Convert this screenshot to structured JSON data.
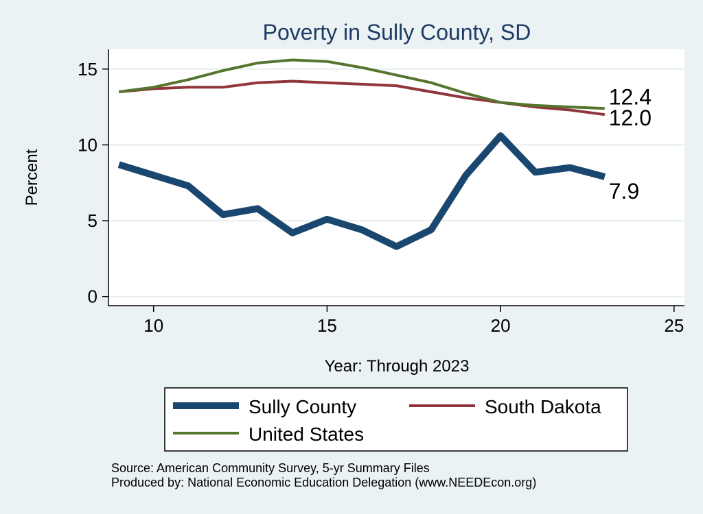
{
  "chart_data": {
    "type": "line",
    "title": "Poverty in Sully County, SD",
    "xlabel": "Year: Through 2023",
    "ylabel": "Percent",
    "xlim": [
      8.7,
      25.3
    ],
    "ylim": [
      -0.6,
      16.3
    ],
    "x_ticks": [
      10,
      15,
      20,
      25
    ],
    "y_ticks": [
      0,
      5,
      10,
      15
    ],
    "grid": "horizontal",
    "legend_position": "bottom",
    "series": [
      {
        "name": "Sully County",
        "color": "#1a476f",
        "x": [
          9,
          10,
          11,
          12,
          13,
          14,
          15,
          16,
          17,
          18,
          19,
          20,
          21,
          22,
          23
        ],
        "y": [
          8.7,
          8.0,
          7.3,
          5.4,
          5.8,
          4.2,
          5.1,
          4.4,
          3.3,
          4.4,
          8.0,
          10.6,
          8.2,
          8.5,
          7.9
        ],
        "end_label": "7.9"
      },
      {
        "name": "South Dakota",
        "color": "#90353b",
        "x": [
          9,
          10,
          11,
          12,
          13,
          14,
          15,
          16,
          17,
          18,
          19,
          20,
          21,
          22,
          23
        ],
        "y": [
          13.5,
          13.7,
          13.8,
          13.8,
          14.1,
          14.2,
          14.1,
          14.0,
          13.9,
          13.5,
          13.1,
          12.8,
          12.5,
          12.3,
          12.0
        ],
        "end_label": "12.0"
      },
      {
        "name": "United States",
        "color": "#55752f",
        "x": [
          9,
          10,
          11,
          12,
          13,
          14,
          15,
          16,
          17,
          18,
          19,
          20,
          21,
          22,
          23
        ],
        "y": [
          13.5,
          13.8,
          14.3,
          14.9,
          15.4,
          15.6,
          15.5,
          15.1,
          14.6,
          14.1,
          13.4,
          12.8,
          12.6,
          12.5,
          12.4
        ],
        "end_label": "12.4"
      }
    ],
    "legend": [
      {
        "label": "Sully County",
        "color": "#1a476f",
        "width": "thick"
      },
      {
        "label": "South Dakota",
        "color": "#90353b",
        "width": "normal"
      },
      {
        "label": "United States",
        "color": "#55752f",
        "width": "normal"
      }
    ],
    "notes": [
      "Source: American Community Survey, 5-yr Summary Files",
      "Produced by: National Economic Education Delegation (www.NEEDEcon.org)"
    ]
  }
}
